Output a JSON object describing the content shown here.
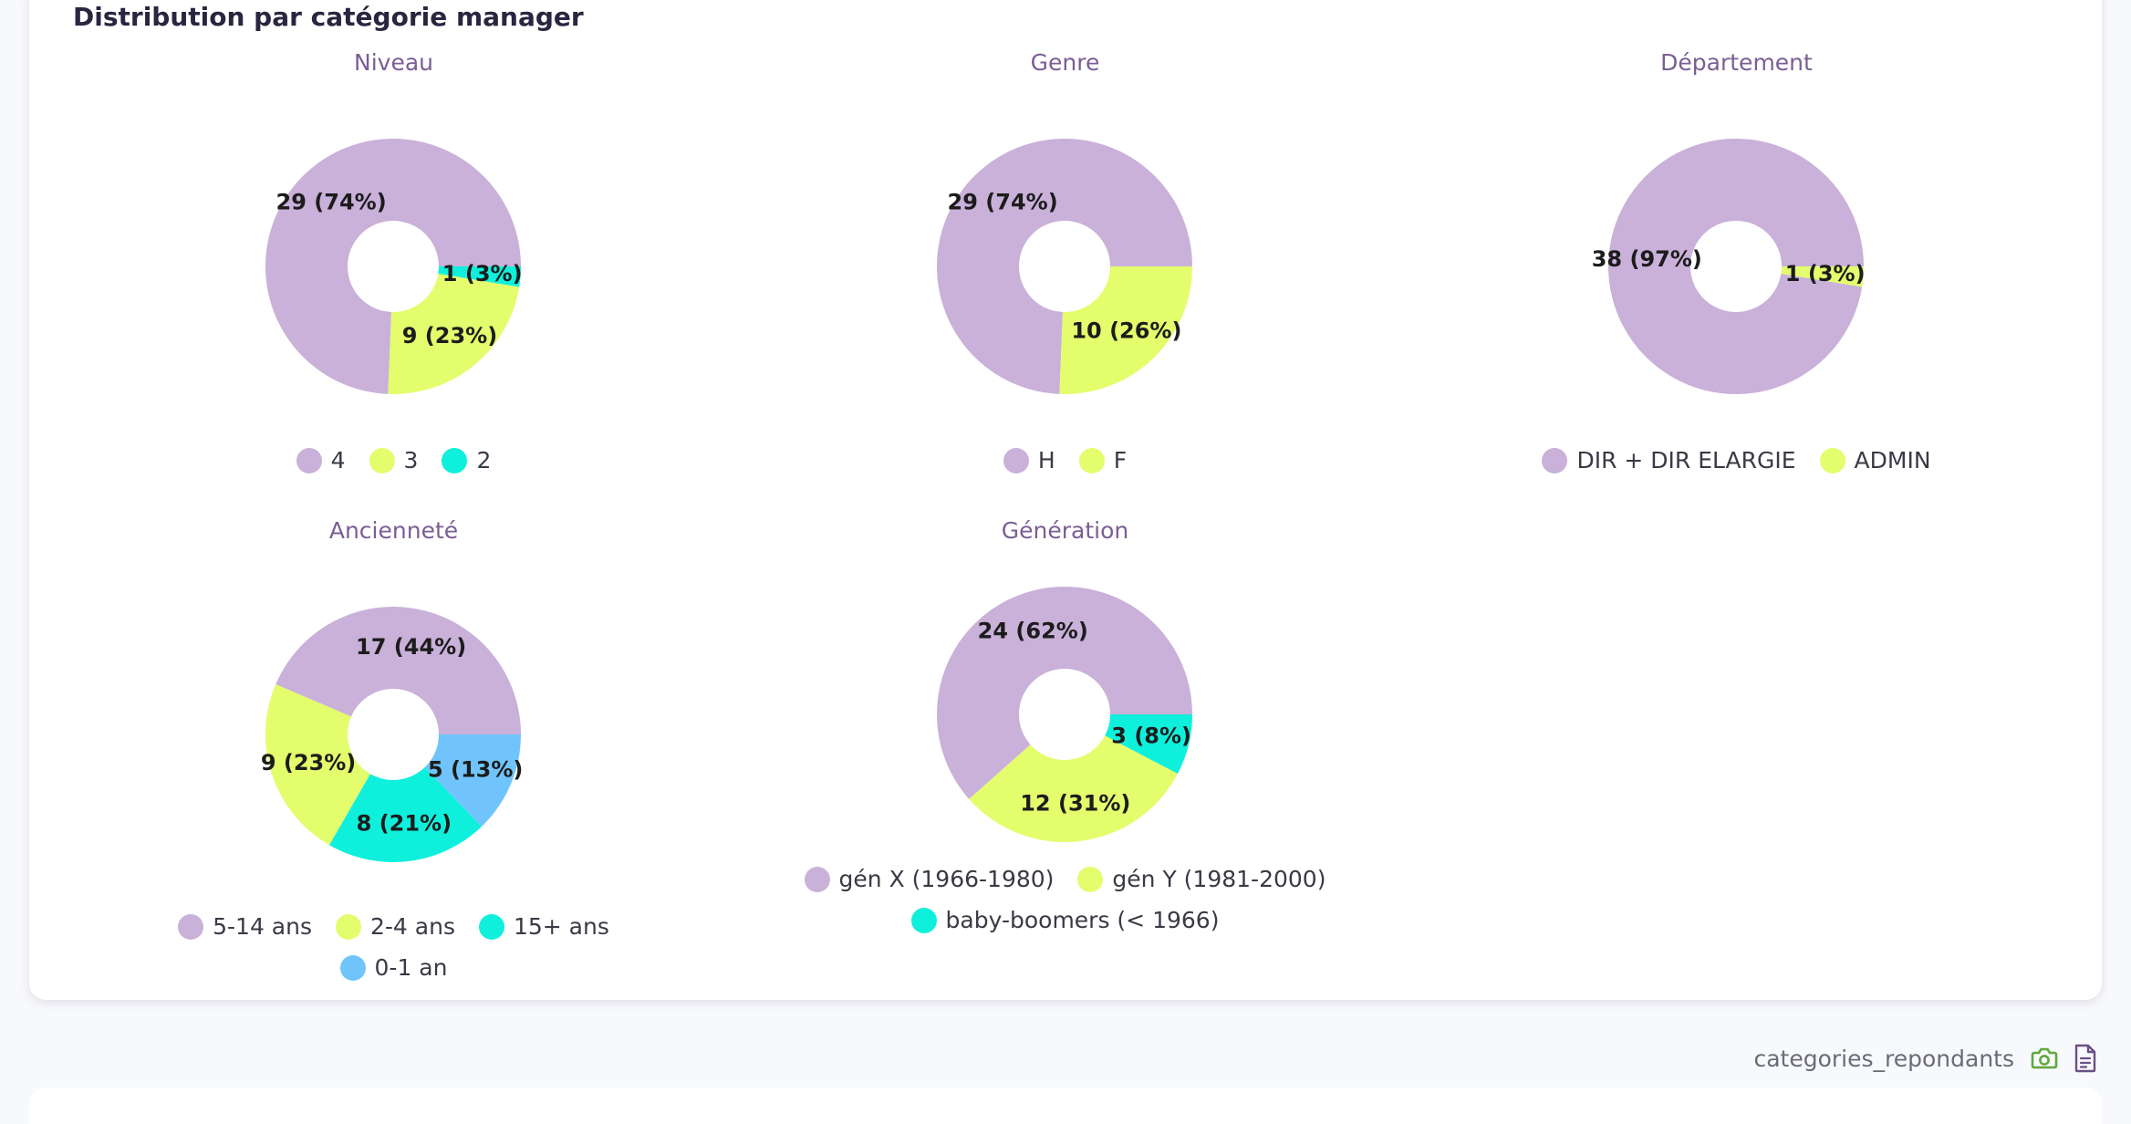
{
  "section_title": "Distribution par catégorie manager",
  "footer": {
    "dataset_name": "categories_repondants",
    "camera_icon": "camera-icon",
    "document_icon": "document-icon"
  },
  "colors": {
    "lavender": "#c9b1d9",
    "lime": "#e3fd6d",
    "cyan": "#0ff0dc",
    "sky": "#70c4fb"
  },
  "chart_data": [
    {
      "type": "pie",
      "title": "Niveau",
      "categories": [
        "4",
        "3",
        "2"
      ],
      "values": [
        29,
        9,
        1
      ],
      "labels": [
        "29 (74%)",
        "9 (23%)",
        "1 (3%)"
      ],
      "colors": [
        "#c9b1d9",
        "#e3fd6d",
        "#0ff0dc"
      ]
    },
    {
      "type": "pie",
      "title": "Genre",
      "categories": [
        "H",
        "F"
      ],
      "values": [
        29,
        10
      ],
      "labels": [
        "29 (74%)",
        "10 (26%)"
      ],
      "colors": [
        "#c9b1d9",
        "#e3fd6d"
      ]
    },
    {
      "type": "pie",
      "title": "Département",
      "categories": [
        "DIR + DIR ELARGIE",
        "ADMIN"
      ],
      "values": [
        38,
        1
      ],
      "labels": [
        "38 (97%)",
        "1 (3%)"
      ],
      "colors": [
        "#c9b1d9",
        "#e3fd6d"
      ]
    },
    {
      "type": "pie",
      "title": "Ancienneté",
      "categories": [
        "5-14 ans",
        "2-4 ans",
        "15+ ans",
        "0-1 an"
      ],
      "values": [
        17,
        9,
        8,
        5
      ],
      "labels": [
        "17 (44%)",
        "9 (23%)",
        "8 (21%)",
        "5 (13%)"
      ],
      "colors": [
        "#c9b1d9",
        "#e3fd6d",
        "#0ff0dc",
        "#70c4fb"
      ]
    },
    {
      "type": "pie",
      "title": "Génération",
      "categories": [
        "gén X (1966-1980)",
        "gén Y (1981-2000)",
        "baby-boomers (< 1966)"
      ],
      "values": [
        24,
        12,
        3
      ],
      "labels": [
        "24 (62%)",
        "12 (31%)",
        "3 (8%)"
      ],
      "colors": [
        "#c9b1d9",
        "#e3fd6d",
        "#0ff0dc"
      ]
    }
  ]
}
